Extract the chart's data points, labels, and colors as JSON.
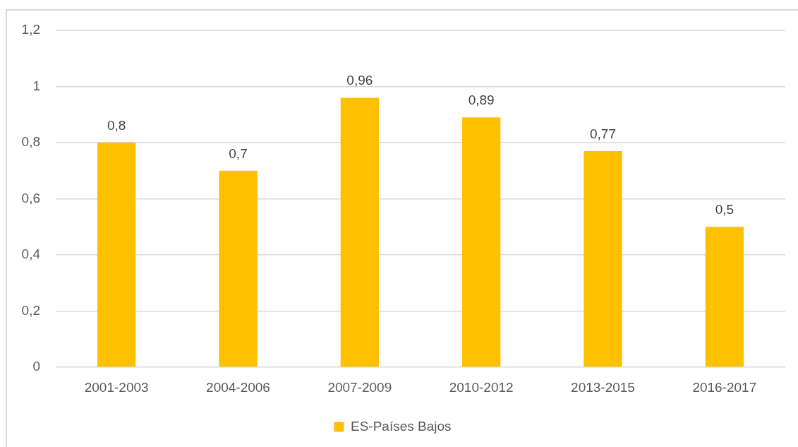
{
  "chart_data": {
    "type": "bar",
    "categories": [
      "2001-2003",
      "2004-2006",
      "2007-2009",
      "2010-2012",
      "2013-2015",
      "2016-2017"
    ],
    "series": [
      {
        "name": "ES-Países Bajos",
        "color": "#ffc000",
        "values": [
          0.8,
          0.7,
          0.96,
          0.89,
          0.77,
          0.5
        ],
        "value_labels": [
          "0,8",
          "0,7",
          "0,96",
          "0,89",
          "0,77",
          "0,5"
        ]
      }
    ],
    "ylim": [
      0,
      1.2
    ],
    "yticks": [
      0,
      {
        "value": 0.2,
        "label": "0,2"
      },
      {
        "value": 0.4,
        "label": "0,4"
      },
      {
        "value": 0.6,
        "label": "0,6"
      },
      {
        "value": 0.8,
        "label": "0,8"
      },
      1,
      {
        "value": 1.2,
        "label": "1,2"
      }
    ],
    "grid": "y",
    "legend": "bottom"
  }
}
